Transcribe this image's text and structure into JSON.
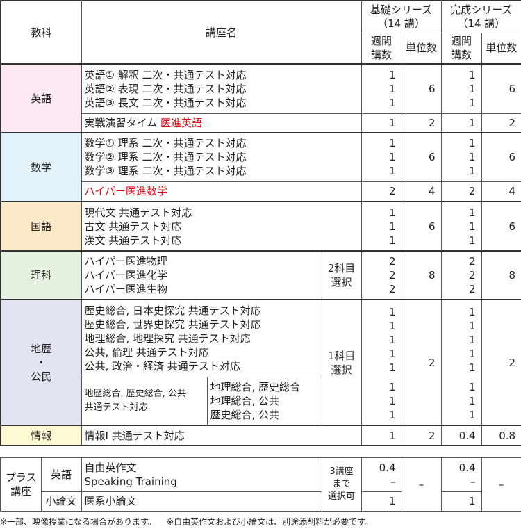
{
  "colors": {
    "english": "#fde9f1",
    "math": "#e3f2fb",
    "japanese": "#fde8c8",
    "science": "#e6f2e0",
    "social": "#e4e3f1",
    "info": "#fdf9d3",
    "highlight": "#e60012"
  },
  "header": {
    "subject": "教科",
    "course": "講座名",
    "basic": "基礎シリーズ\n（14 講）",
    "complete": "完成シリーズ\n（14 講）",
    "weekly": "週間\n講数",
    "units": "単位数"
  },
  "english": {
    "subject": "英語",
    "courses": "英語① 解釈 二次・共通テスト対応\n英語② 表現 二次・共通テスト対応\n英語③ 長文 二次・共通テスト対応",
    "b_weekly": "1\n1\n1",
    "b_units": "6",
    "c_weekly": "1\n1\n1",
    "c_units": "6",
    "extra_prefix": "実戦演習タイム ",
    "extra_red": "医進英語",
    "e_bw": "1",
    "e_bu": "2",
    "e_cw": "1",
    "e_cu": "2"
  },
  "math": {
    "subject": "数学",
    "courses": "数学① 理系 二次・共通テスト対応\n数学② 理系 二次・共通テスト対応\n数学③ 理系 二次・共通テスト対応",
    "b_weekly": "1\n1\n1",
    "b_units": "6",
    "c_weekly": "1\n1\n1",
    "c_units": "6",
    "extra_red": "ハイパー医進数学",
    "e_bw": "2",
    "e_bu": "4",
    "e_cw": "2",
    "e_cu": "4"
  },
  "japanese": {
    "subject": "国語",
    "courses": "現代文 共通テスト対応\n古文 共通テスト対応\n漢文 共通テスト対応",
    "b_weekly": "1\n1\n1",
    "b_units": "6",
    "c_weekly": "1\n1\n1",
    "c_units": "6"
  },
  "science": {
    "subject": "理科",
    "courses": "ハイパー医進物理\nハイパー医進化学\nハイパー医進生物",
    "select": "2科目\n選択",
    "b_weekly": "2\n2\n2",
    "b_units": "8",
    "c_weekly": "2\n2\n2",
    "c_units": "8"
  },
  "social": {
    "subject": "地歴\n・\n公民",
    "courses": "歴史総合, 日本史探究 共通テスト対応\n歴史総合, 世界史探究 共通テスト対応\n地理総合, 地理探究 共通テスト対応\n公共, 倫理 共通テスト対応\n公共, 政治・経済 共通テスト対応",
    "select": "1科目\n選択",
    "b_weekly": "1\n1\n1\n1\n1",
    "b_units": "2",
    "c_weekly": "1\n1\n1\n1\n1",
    "c_units": "2",
    "combo_left": "地歴総合, 歴史総合, 公共\n共通テスト対応",
    "combo_right": "地理総合, 歴史総合\n地理総合, 公共\n歴史総合, 公共",
    "combo_bw": "1\n1\n1",
    "combo_cw": "1\n1\n1"
  },
  "info": {
    "subject": "情報",
    "course": "情報Ⅰ 共通テスト対応",
    "b_weekly": "1",
    "b_units": "2",
    "c_weekly": "0.4",
    "c_units": "0.8"
  },
  "plus": {
    "label": "プラス\n講座",
    "english": "英語",
    "english_courses": "自由英作文\nSpeaking Training",
    "select": "3講座\nまで\n選択可",
    "e_bw": "0.4\n–",
    "b_units": "–",
    "e_cw": "0.4\n–",
    "c_units": "–",
    "essay": "小論文",
    "essay_course": "医系小論文",
    "s_bw": "1",
    "s_cw": "1"
  },
  "footnotes": [
    "※一部、映像授業になる場合があります。",
    "※自由英作文および小論文は、別途添削料が必要です。"
  ]
}
